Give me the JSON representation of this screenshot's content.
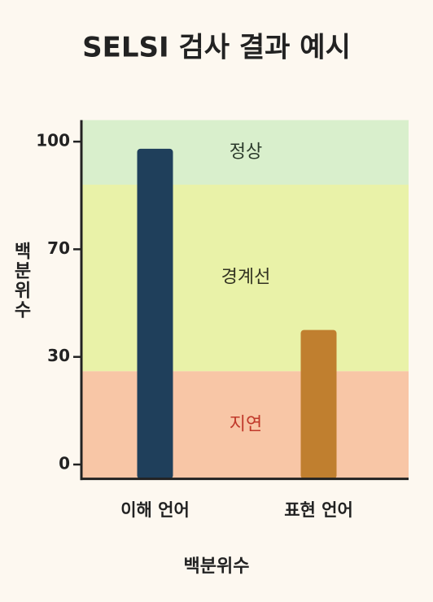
{
  "chart_data": {
    "type": "bar",
    "title": "SELSI 검사 결과 예시",
    "x_label": "백분위수",
    "y_label": "백분위수",
    "categories": [
      "이해 언어",
      "표현 언어"
    ],
    "values": [
      98,
      40
    ],
    "colors": [
      "#1f3f5b",
      "#c07f2f"
    ],
    "ylim": [
      -4,
      106
    ],
    "yticks": [
      0,
      30,
      70,
      100
    ],
    "bands": [
      {
        "label": "정상",
        "from": 88,
        "to": 106,
        "color": "#d9efcc",
        "label_color": "#2b3a2b"
      },
      {
        "label": "경계선",
        "from": 26,
        "to": 88,
        "color": "#e9f2a8",
        "label_color": "#333322"
      },
      {
        "label": "지연",
        "from": -4,
        "to": 26,
        "color": "#f8c6a6",
        "label_color": "#c0392b"
      }
    ]
  }
}
